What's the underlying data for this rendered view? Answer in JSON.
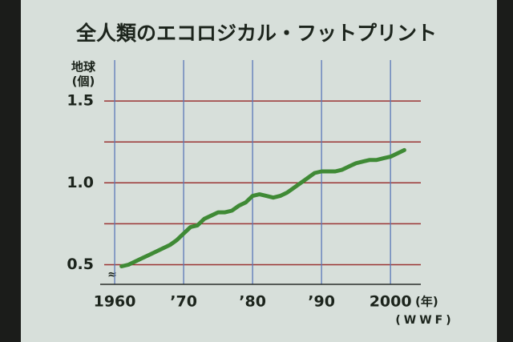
{
  "chart_data": {
    "type": "line",
    "title": "全人類のエコロジカル・フットプリント",
    "y_label_lines": [
      "地球",
      "(個)"
    ],
    "x_label": "(年)",
    "source": "(WWF)",
    "x": [
      1961,
      1962,
      1963,
      1964,
      1965,
      1966,
      1967,
      1968,
      1969,
      1970,
      1971,
      1972,
      1973,
      1974,
      1975,
      1976,
      1977,
      1978,
      1979,
      1980,
      1981,
      1982,
      1983,
      1984,
      1985,
      1986,
      1987,
      1988,
      1989,
      1990,
      1991,
      1992,
      1993,
      1994,
      1995,
      1996,
      1997,
      1998,
      1999,
      2000,
      2001,
      2002
    ],
    "values": [
      0.49,
      0.5,
      0.52,
      0.54,
      0.56,
      0.58,
      0.6,
      0.62,
      0.65,
      0.69,
      0.73,
      0.74,
      0.78,
      0.8,
      0.82,
      0.82,
      0.83,
      0.86,
      0.88,
      0.92,
      0.93,
      0.92,
      0.91,
      0.92,
      0.94,
      0.97,
      1.0,
      1.03,
      1.06,
      1.07,
      1.07,
      1.07,
      1.08,
      1.1,
      1.12,
      1.13,
      1.14,
      1.14,
      1.15,
      1.16,
      1.18,
      1.2
    ],
    "color": "#3f8a35",
    "xlim": [
      1957.9,
      2004.4
    ],
    "ylim": [
      0.38,
      1.75
    ],
    "xticks": [
      1960,
      {
        "value": 1970,
        "label": "’70"
      },
      {
        "value": 1980,
        "label": "’80"
      },
      {
        "value": 1990,
        "label": "’90"
      },
      2000
    ],
    "yticks": [
      {
        "value": 0.5,
        "label": "0.5"
      },
      {
        "value": 1.0,
        "label": "1.0"
      },
      {
        "value": 1.5,
        "label": "1.5"
      }
    ],
    "minor_yticks": [
      0.75,
      1.25
    ],
    "grid": true,
    "x_grid_color": "#5a78b8",
    "y_grid_color": "#9a3434"
  }
}
